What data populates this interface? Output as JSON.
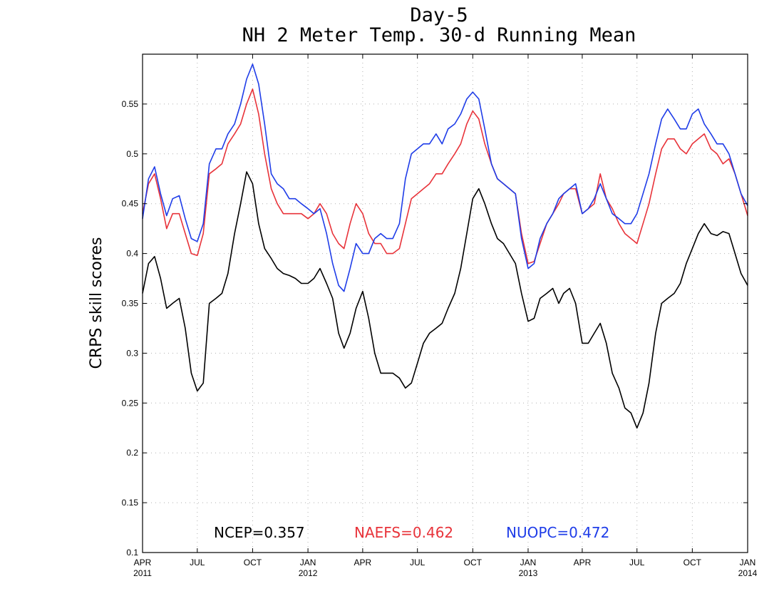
{
  "chart_data": {
    "type": "line",
    "title": "Day-5",
    "subtitle": "NH 2 Meter Temp. 30-d Running Mean",
    "ylabel": "CRPS skill scores",
    "xlabel": "",
    "ylim": [
      0.1,
      0.6
    ],
    "yticks": [
      "0.1",
      "0.15",
      "0.2",
      "0.25",
      "0.3",
      "0.35",
      "0.4",
      "0.45",
      "0.5",
      "0.55"
    ],
    "yticks_values": [
      0.1,
      0.15,
      0.2,
      0.25,
      0.3,
      0.35,
      0.4,
      0.45,
      0.5,
      0.55
    ],
    "xlim": [
      "2011-04-01",
      "2014-01-01"
    ],
    "xticks": [
      {
        "date": "2011-04-01",
        "label": "APR",
        "year": "2011"
      },
      {
        "date": "2011-07-01",
        "label": "JUL",
        "year": ""
      },
      {
        "date": "2011-10-01",
        "label": "OCT",
        "year": ""
      },
      {
        "date": "2012-01-01",
        "label": "JAN",
        "year": "2012"
      },
      {
        "date": "2012-04-01",
        "label": "APR",
        "year": ""
      },
      {
        "date": "2012-07-01",
        "label": "JUL",
        "year": ""
      },
      {
        "date": "2012-10-01",
        "label": "OCT",
        "year": ""
      },
      {
        "date": "2013-01-01",
        "label": "JAN",
        "year": "2013"
      },
      {
        "date": "2013-04-01",
        "label": "APR",
        "year": ""
      },
      {
        "date": "2013-07-01",
        "label": "JUL",
        "year": ""
      },
      {
        "date": "2013-10-01",
        "label": "OCT",
        "year": ""
      },
      {
        "date": "2014-01-01",
        "label": "JAN",
        "year": "2014"
      }
    ],
    "grid": true,
    "legend": [
      {
        "text": "NCEP=0.357",
        "color": "#000000"
      },
      {
        "text": "NAEFS=0.462",
        "color": "#e8333a"
      },
      {
        "text": "NUOPC=0.472",
        "color": "#1f3de8"
      }
    ],
    "series": [
      {
        "name": "NCEP",
        "color": "#000000",
        "x": [
          "2011-04-01",
          "2011-04-11",
          "2011-04-21",
          "2011-05-01",
          "2011-05-11",
          "2011-05-21",
          "2011-06-01",
          "2011-06-11",
          "2011-06-21",
          "2011-07-01",
          "2011-07-11",
          "2011-07-21",
          "2011-08-01",
          "2011-08-11",
          "2011-08-21",
          "2011-09-01",
          "2011-09-11",
          "2011-09-21",
          "2011-10-01",
          "2011-10-11",
          "2011-10-21",
          "2011-11-01",
          "2011-11-11",
          "2011-11-21",
          "2011-12-01",
          "2011-12-11",
          "2011-12-21",
          "2012-01-01",
          "2012-01-11",
          "2012-01-21",
          "2012-02-01",
          "2012-02-11",
          "2012-02-21",
          "2012-03-01",
          "2012-03-11",
          "2012-03-21",
          "2012-04-01",
          "2012-04-11",
          "2012-04-21",
          "2012-05-01",
          "2012-05-11",
          "2012-05-21",
          "2012-06-01",
          "2012-06-11",
          "2012-06-21",
          "2012-07-01",
          "2012-07-11",
          "2012-07-21",
          "2012-08-01",
          "2012-08-11",
          "2012-08-21",
          "2012-09-01",
          "2012-09-11",
          "2012-09-21",
          "2012-10-01",
          "2012-10-11",
          "2012-10-21",
          "2012-11-01",
          "2012-11-11",
          "2012-11-21",
          "2012-12-01",
          "2012-12-11",
          "2012-12-21",
          "2013-01-01",
          "2013-01-11",
          "2013-01-21",
          "2013-02-01",
          "2013-02-11",
          "2013-02-21",
          "2013-03-01",
          "2013-03-11",
          "2013-03-21",
          "2013-04-01",
          "2013-04-11",
          "2013-04-21",
          "2013-05-01",
          "2013-05-11",
          "2013-05-21",
          "2013-06-01",
          "2013-06-11",
          "2013-06-21",
          "2013-07-01",
          "2013-07-11",
          "2013-07-21",
          "2013-08-01",
          "2013-08-11",
          "2013-08-21",
          "2013-09-01",
          "2013-09-11",
          "2013-09-21",
          "2013-10-01",
          "2013-10-11",
          "2013-10-21",
          "2013-11-01",
          "2013-11-11",
          "2013-11-21",
          "2013-12-01",
          "2013-12-11",
          "2013-12-21",
          "2014-01-01"
        ],
        "y": [
          0.36,
          0.39,
          0.397,
          0.375,
          0.345,
          0.35,
          0.355,
          0.325,
          0.28,
          0.262,
          0.27,
          0.35,
          0.355,
          0.36,
          0.38,
          0.42,
          0.45,
          0.482,
          0.47,
          0.43,
          0.405,
          0.395,
          0.385,
          0.38,
          0.378,
          0.375,
          0.37,
          0.37,
          0.375,
          0.385,
          0.37,
          0.355,
          0.32,
          0.305,
          0.32,
          0.345,
          0.362,
          0.335,
          0.3,
          0.28,
          0.28,
          0.28,
          0.275,
          0.265,
          0.27,
          0.29,
          0.31,
          0.32,
          0.325,
          0.33,
          0.345,
          0.36,
          0.385,
          0.42,
          0.455,
          0.465,
          0.45,
          0.43,
          0.415,
          0.41,
          0.4,
          0.39,
          0.36,
          0.332,
          0.335,
          0.355,
          0.36,
          0.365,
          0.35,
          0.36,
          0.365,
          0.35,
          0.31,
          0.31,
          0.32,
          0.33,
          0.31,
          0.28,
          0.265,
          0.245,
          0.24,
          0.225,
          0.24,
          0.27,
          0.32,
          0.35,
          0.355,
          0.36,
          0.37,
          0.39,
          0.405,
          0.42,
          0.43,
          0.42,
          0.418,
          0.422,
          0.42,
          0.4,
          0.38,
          0.368
        ]
      },
      {
        "name": "NAEFS",
        "color": "#e8333a",
        "x": [
          "2011-04-01",
          "2011-04-11",
          "2011-04-21",
          "2011-05-01",
          "2011-05-11",
          "2011-05-21",
          "2011-06-01",
          "2011-06-11",
          "2011-06-21",
          "2011-07-01",
          "2011-07-11",
          "2011-07-21",
          "2011-08-01",
          "2011-08-11",
          "2011-08-21",
          "2011-09-01",
          "2011-09-11",
          "2011-09-21",
          "2011-10-01",
          "2011-10-11",
          "2011-10-21",
          "2011-11-01",
          "2011-11-11",
          "2011-11-21",
          "2011-12-01",
          "2011-12-11",
          "2011-12-21",
          "2012-01-01",
          "2012-01-11",
          "2012-01-21",
          "2012-02-01",
          "2012-02-11",
          "2012-02-21",
          "2012-03-01",
          "2012-03-11",
          "2012-03-21",
          "2012-04-01",
          "2012-04-11",
          "2012-04-21",
          "2012-05-01",
          "2012-05-11",
          "2012-05-21",
          "2012-06-01",
          "2012-06-11",
          "2012-06-21",
          "2012-07-01",
          "2012-07-11",
          "2012-07-21",
          "2012-08-01",
          "2012-08-11",
          "2012-08-21",
          "2012-09-01",
          "2012-09-11",
          "2012-09-21",
          "2012-10-01",
          "2012-10-11",
          "2012-10-21",
          "2012-11-01",
          "2012-11-11",
          "2012-11-21",
          "2012-12-01",
          "2012-12-11",
          "2012-12-21",
          "2013-01-01",
          "2013-01-11",
          "2013-01-21",
          "2013-02-01",
          "2013-02-11",
          "2013-02-21",
          "2013-03-01",
          "2013-03-11",
          "2013-03-21",
          "2013-04-01",
          "2013-04-11",
          "2013-04-21",
          "2013-05-01",
          "2013-05-11",
          "2013-05-21",
          "2013-06-01",
          "2013-06-11",
          "2013-06-21",
          "2013-07-01",
          "2013-07-11",
          "2013-07-21",
          "2013-08-01",
          "2013-08-11",
          "2013-08-21",
          "2013-09-01",
          "2013-09-11",
          "2013-09-21",
          "2013-10-01",
          "2013-10-11",
          "2013-10-21",
          "2013-11-01",
          "2013-11-11",
          "2013-11-21",
          "2013-12-01",
          "2013-12-11",
          "2013-12-21",
          "2014-01-01"
        ],
        "y": [
          0.44,
          0.47,
          0.48,
          0.455,
          0.425,
          0.44,
          0.44,
          0.42,
          0.4,
          0.398,
          0.42,
          0.48,
          0.485,
          0.49,
          0.51,
          0.52,
          0.53,
          0.55,
          0.565,
          0.54,
          0.5,
          0.465,
          0.45,
          0.44,
          0.44,
          0.44,
          0.44,
          0.435,
          0.44,
          0.45,
          0.44,
          0.42,
          0.41,
          0.405,
          0.43,
          0.45,
          0.44,
          0.42,
          0.41,
          0.41,
          0.4,
          0.4,
          0.405,
          0.43,
          0.455,
          0.46,
          0.465,
          0.47,
          0.48,
          0.48,
          0.49,
          0.5,
          0.51,
          0.53,
          0.543,
          0.535,
          0.51,
          0.49,
          0.475,
          0.47,
          0.465,
          0.46,
          0.42,
          0.39,
          0.392,
          0.41,
          0.43,
          0.44,
          0.45,
          0.46,
          0.465,
          0.465,
          0.44,
          0.445,
          0.45,
          0.48,
          0.455,
          0.445,
          0.43,
          0.42,
          0.415,
          0.41,
          0.43,
          0.45,
          0.48,
          0.505,
          0.515,
          0.515,
          0.505,
          0.5,
          0.51,
          0.515,
          0.52,
          0.505,
          0.5,
          0.49,
          0.495,
          0.48,
          0.46,
          0.438
        ]
      },
      {
        "name": "NUOPC",
        "color": "#1f3de8",
        "x": [
          "2011-04-01",
          "2011-04-11",
          "2011-04-21",
          "2011-05-01",
          "2011-05-11",
          "2011-05-21",
          "2011-06-01",
          "2011-06-11",
          "2011-06-21",
          "2011-07-01",
          "2011-07-11",
          "2011-07-21",
          "2011-08-01",
          "2011-08-11",
          "2011-08-21",
          "2011-09-01",
          "2011-09-11",
          "2011-09-21",
          "2011-10-01",
          "2011-10-11",
          "2011-10-21",
          "2011-11-01",
          "2011-11-11",
          "2011-11-21",
          "2011-12-01",
          "2011-12-11",
          "2011-12-21",
          "2012-01-01",
          "2012-01-11",
          "2012-01-21",
          "2012-02-01",
          "2012-02-11",
          "2012-02-21",
          "2012-03-01",
          "2012-03-11",
          "2012-03-21",
          "2012-04-01",
          "2012-04-11",
          "2012-04-21",
          "2012-05-01",
          "2012-05-11",
          "2012-05-21",
          "2012-06-01",
          "2012-06-11",
          "2012-06-21",
          "2012-07-01",
          "2012-07-11",
          "2012-07-21",
          "2012-08-01",
          "2012-08-11",
          "2012-08-21",
          "2012-09-01",
          "2012-09-11",
          "2012-09-21",
          "2012-10-01",
          "2012-10-11",
          "2012-10-21",
          "2012-11-01",
          "2012-11-11",
          "2012-11-21",
          "2012-12-01",
          "2012-12-11",
          "2012-12-21",
          "2013-01-01",
          "2013-01-11",
          "2013-01-21",
          "2013-02-01",
          "2013-02-11",
          "2013-02-21",
          "2013-03-01",
          "2013-03-11",
          "2013-03-21",
          "2013-04-01",
          "2013-04-11",
          "2013-04-21",
          "2013-05-01",
          "2013-05-11",
          "2013-05-21",
          "2013-06-01",
          "2013-06-11",
          "2013-06-21",
          "2013-07-01",
          "2013-07-11",
          "2013-07-21",
          "2013-08-01",
          "2013-08-11",
          "2013-08-21",
          "2013-09-01",
          "2013-09-11",
          "2013-09-21",
          "2013-10-01",
          "2013-10-11",
          "2013-10-21",
          "2013-11-01",
          "2013-11-11",
          "2013-11-21",
          "2013-12-01",
          "2013-12-11",
          "2013-12-21",
          "2014-01-01"
        ],
        "y": [
          0.435,
          0.475,
          0.487,
          0.46,
          0.438,
          0.455,
          0.458,
          0.435,
          0.415,
          0.412,
          0.43,
          0.49,
          0.505,
          0.505,
          0.52,
          0.53,
          0.55,
          0.575,
          0.59,
          0.57,
          0.53,
          0.48,
          0.47,
          0.465,
          0.455,
          0.455,
          0.45,
          0.445,
          0.44,
          0.445,
          0.42,
          0.39,
          0.368,
          0.362,
          0.385,
          0.41,
          0.4,
          0.4,
          0.415,
          0.42,
          0.415,
          0.415,
          0.43,
          0.475,
          0.5,
          0.505,
          0.51,
          0.51,
          0.52,
          0.51,
          0.525,
          0.53,
          0.54,
          0.555,
          0.562,
          0.555,
          0.525,
          0.49,
          0.475,
          0.47,
          0.465,
          0.46,
          0.415,
          0.385,
          0.39,
          0.415,
          0.43,
          0.44,
          0.455,
          0.46,
          0.465,
          0.47,
          0.44,
          0.445,
          0.455,
          0.47,
          0.455,
          0.44,
          0.435,
          0.43,
          0.43,
          0.44,
          0.46,
          0.48,
          0.51,
          0.535,
          0.545,
          0.535,
          0.525,
          0.525,
          0.54,
          0.545,
          0.53,
          0.52,
          0.51,
          0.51,
          0.5,
          0.48,
          0.46,
          0.448
        ]
      }
    ]
  }
}
